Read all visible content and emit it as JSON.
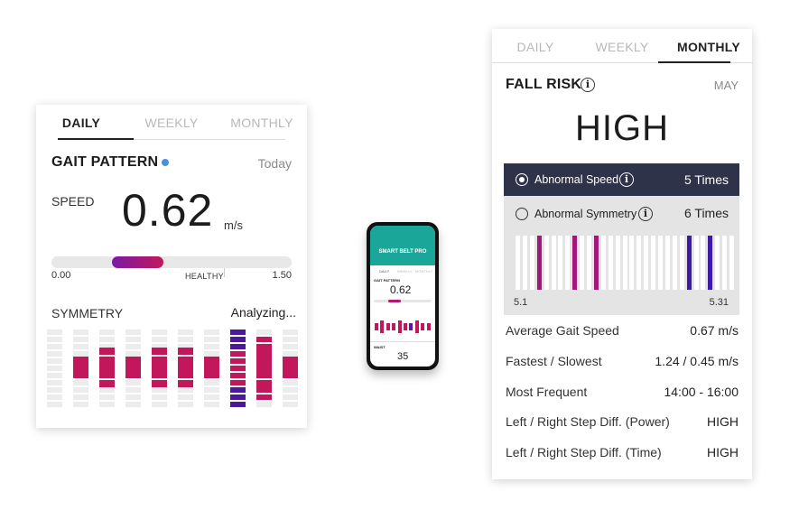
{
  "daily_card": {
    "tabs": [
      "DAILY",
      "WEEKLY",
      "MONTHLY"
    ],
    "title": "GAIT PATTERN",
    "period": "Today",
    "speed_label": "SPEED",
    "speed_value": "0.62",
    "speed_unit": "m/s",
    "scale_min": "0.00",
    "scale_mid": "HEALTHY",
    "scale_max": "1.50",
    "symmetry_label": "SYMMETRY",
    "symmetry_status": "Analyzing...",
    "colors": {
      "accent_dot": "#4a90e2",
      "magenta": "#c2185b",
      "purple": "#4a1a9a",
      "indicator_start": "#7a1aa8",
      "indicator_end": "#c2185b"
    }
  },
  "phone": {
    "app_title": "SMART BELT PRO",
    "tabs": [
      "DAILY",
      "WEEKLY",
      "MONTHLY"
    ],
    "title": "GAIT PATTERN",
    "speed_value": "0.62",
    "bottom_label": "WAIST",
    "bottom_value": "35"
  },
  "monthly_card": {
    "tabs": [
      "DAILY",
      "WEEKLY",
      "MONTHLY"
    ],
    "title": "FALL RISK",
    "period": "MAY",
    "risk_level": "HIGH",
    "options": [
      {
        "label": "Abnormal Speed",
        "count": "5",
        "unit": "Times",
        "selected": true
      },
      {
        "label": "Abnormal Symmetry",
        "count": "6",
        "unit": "Times",
        "selected": false
      }
    ],
    "range_start": "5.1",
    "range_end": "5.31",
    "stats": [
      {
        "label": "Average Gait Speed",
        "value": "0.67 m/s"
      },
      {
        "label": "Fastest / Slowest",
        "value": "1.24 / 0.45 m/s"
      },
      {
        "label": "Most Frequent",
        "value": "14:00 - 16:00"
      },
      {
        "label": "Left / Right Step Diff. (Power)",
        "value": "HIGH"
      },
      {
        "label": "Left / Right Step Diff. (Time)",
        "value": "HIGH"
      }
    ],
    "colors": {
      "selected_row_bg": "#2f3349",
      "timeline_bg": "#e4e4e4",
      "magenta": "#a3177a",
      "purple": "#3d1aa8"
    }
  }
}
